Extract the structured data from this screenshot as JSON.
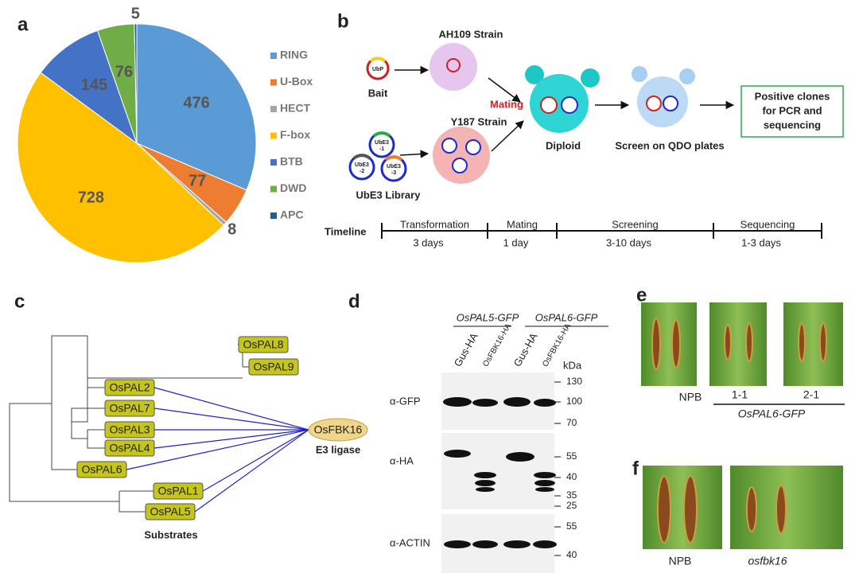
{
  "chart_data": {
    "type": "pie",
    "categories": [
      "RING",
      "U-Box",
      "HECT",
      "F-box",
      "BTB",
      "DWD",
      "APC"
    ],
    "values": [
      476,
      77,
      8,
      728,
      145,
      76,
      5
    ],
    "colors": [
      "#5b9bd5",
      "#ed7d31",
      "#a5a5a5",
      "#ffc000",
      "#4472c4",
      "#70ad47",
      "#255e91"
    ],
    "legend": "right"
  },
  "panel_labels": [
    "a",
    "b",
    "c",
    "d",
    "e",
    "f"
  ],
  "panel_b": {
    "strain1": "AH109 Strain",
    "bait_plasmid": "UbP",
    "bait": "Bait",
    "strain2": "Y187 Strain",
    "lib_plasmids": [
      [
        "UbE3",
        "-1"
      ],
      [
        "UbE3",
        "-2"
      ],
      [
        "UbE3",
        "-3"
      ]
    ],
    "library": "UbE3 Library",
    "mating": "Mating",
    "diploid": "Diploid",
    "screen": "Screen on QDO plates",
    "result": [
      "Positive clones",
      "for PCR and",
      "sequencing"
    ],
    "timeline": {
      "title": "Timeline",
      "stages": [
        {
          "name": "Transformation",
          "duration": "3 days"
        },
        {
          "name": "Mating",
          "duration": "1 day"
        },
        {
          "name": "Screening",
          "duration": "3-10 days"
        },
        {
          "name": "Sequencing",
          "duration": "1-3 days"
        }
      ]
    }
  },
  "panel_c": {
    "leaves": [
      "OsPAL8",
      "OsPAL9",
      "OsPAL2",
      "OsPAL7",
      "OsPAL3",
      "OsPAL4",
      "OsPAL6",
      "OsPAL1",
      "OsPAL5"
    ],
    "ligase": "OsFBK16",
    "ligase_label": "E3 ligase",
    "substrates": "Substrates"
  },
  "panel_d": {
    "groups": [
      "OsPAL5-GFP",
      "OsPAL6-GFP"
    ],
    "lanes": [
      "Gus-HA",
      "OsFBK16-HA",
      "Gus-HA",
      "OsFBK16-HA"
    ],
    "unit": "kDa",
    "rows": [
      {
        "antibody": "α-GFP",
        "markers": [
          "130",
          "100",
          "70"
        ]
      },
      {
        "antibody": "α-HA",
        "markers": [
          "55",
          "40",
          "35",
          "25"
        ]
      },
      {
        "antibody": "α-ACTIN",
        "markers": [
          "55",
          "40"
        ]
      }
    ]
  },
  "panel_e": {
    "labels": [
      "NPB",
      "1-1",
      "2-1"
    ],
    "line": "OsPAL6-GFP"
  },
  "panel_f": {
    "labels": [
      "NPB",
      "osfbk16"
    ]
  }
}
